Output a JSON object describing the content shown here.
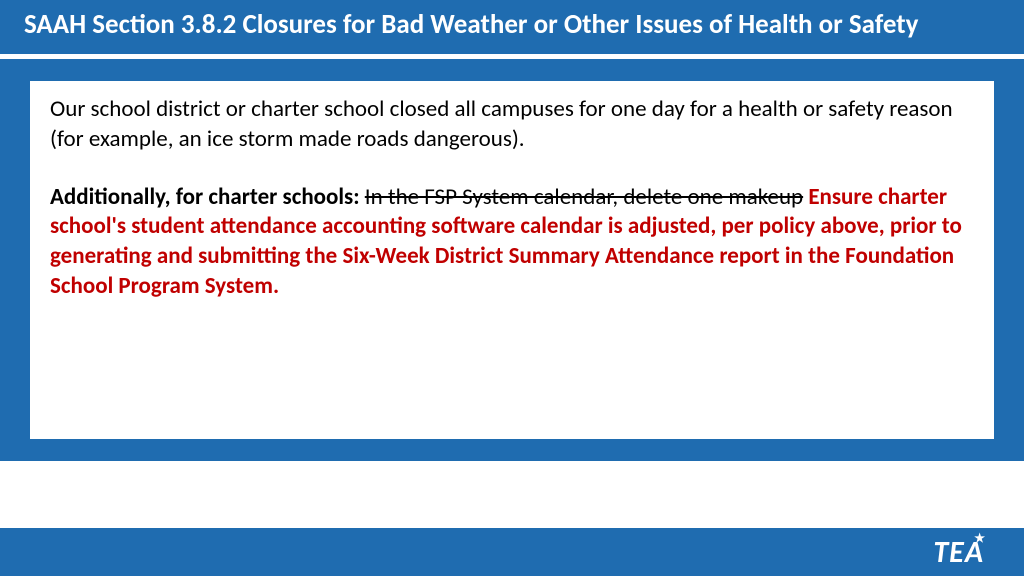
{
  "header": {
    "title": "SAAH Section 3.8.2 Closures for Bad Weather or Other Issues of Health or Safety"
  },
  "content": {
    "para1": "Our school district or charter school closed all campuses for one day for a health or safety reason (for example, an ice storm made roads dangerous).",
    "charter_label": "Additionally, for charter schools: ",
    "strike_text": "In the FSP System calendar, delete one makeup",
    "red_text": " Ensure charter school's student attendance accounting software calendar is adjusted, per policy above, prior to generating and submitting the Six-Week District Summary Attendance report in the Foundation School Program System."
  },
  "logo": {
    "text": "TE",
    "last": "A"
  },
  "colors": {
    "brand_blue": "#1f6cb0",
    "accent_red": "#c00000",
    "white": "#ffffff",
    "black": "#000000"
  }
}
